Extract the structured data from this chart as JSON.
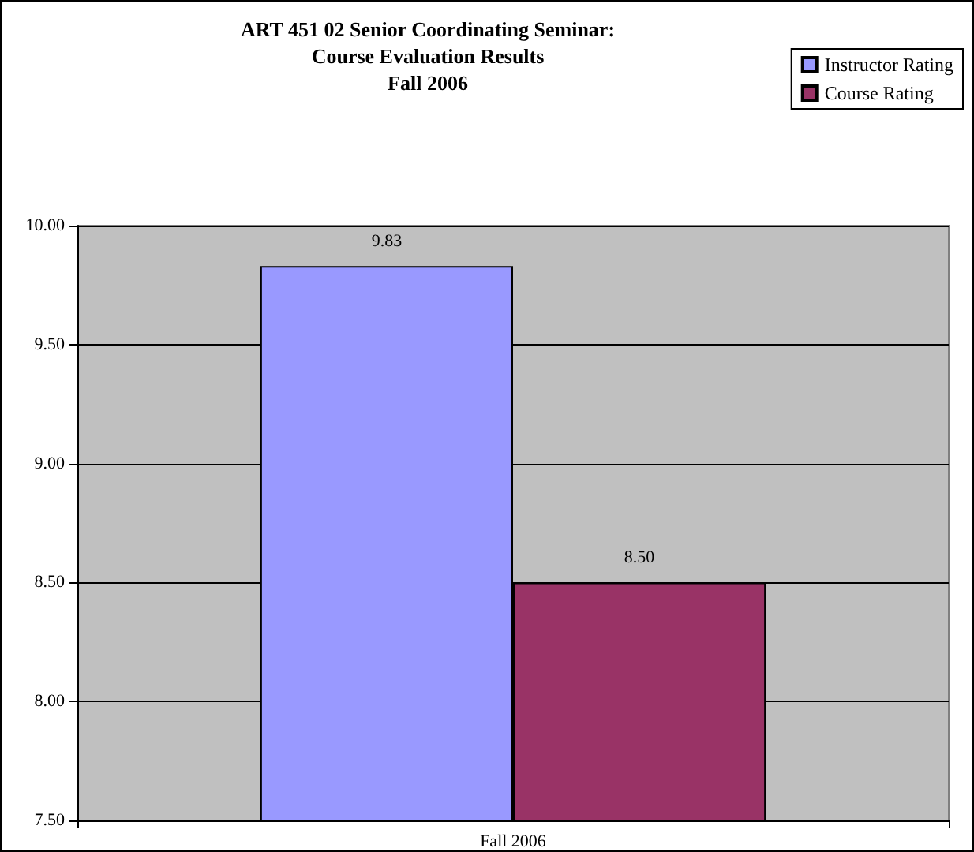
{
  "chart_data": {
    "type": "bar",
    "title": "ART 451 02 Senior Coordinating Seminar:\nCourse Evaluation Results\nFall 2006",
    "categories": [
      "Fall 2006"
    ],
    "series": [
      {
        "name": "Instructor Rating",
        "color": "#9999ff",
        "values": [
          9.83
        ],
        "value_labels": [
          "9.83"
        ]
      },
      {
        "name": "Course Rating",
        "color": "#993366",
        "values": [
          8.5
        ],
        "value_labels": [
          "8.50"
        ]
      }
    ],
    "ylim": [
      7.5,
      10
    ],
    "yticks": [
      {
        "value": 7.5,
        "label": "7.50"
      },
      {
        "value": 8,
        "label": "8.00"
      },
      {
        "value": 8.5,
        "label": "8.50"
      },
      {
        "value": 9,
        "label": "9.00"
      },
      {
        "value": 9.5,
        "label": "9.50"
      },
      {
        "value": 10,
        "label": "10.00"
      }
    ],
    "grid": "y",
    "legend": "top right"
  }
}
